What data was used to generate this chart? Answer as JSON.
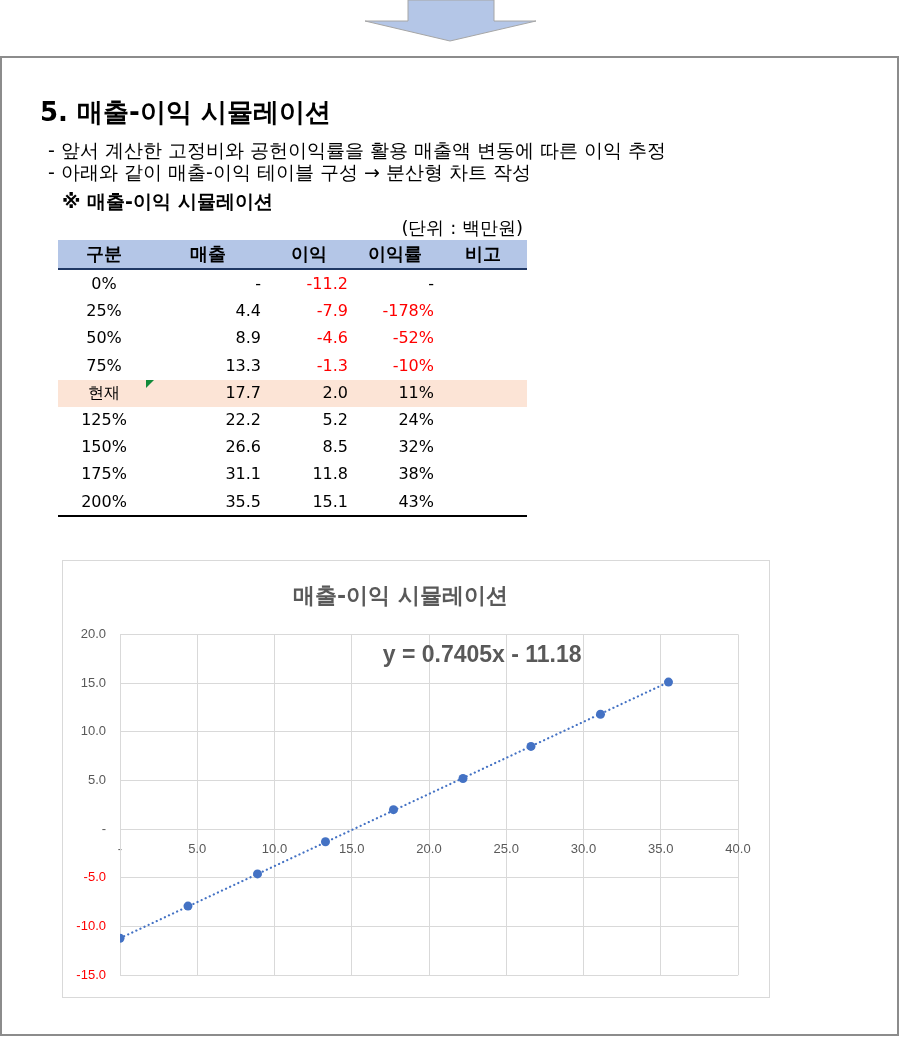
{
  "chart_data": [
    {
      "type": "other",
      "title": "5. 매출-이익 시뮬레이션",
      "subtitle": "※ 매출-이익 시뮬레이션",
      "annotations": [
        "- 앞서 계산한 고정비와 공헌이익률을 활용 매출액 변동에 따른 이익 추정",
        "- 아래와 같이 매출-이익 테이블 구성 → 분산형 차트 작성",
        "(단위 : 백만원)"
      ],
      "ylabel": "구분",
      "categories": [
        "0%",
        "25%",
        "50%",
        "75%",
        "현재",
        "125%",
        "150%",
        "175%",
        "200%"
      ],
      "series": [
        {
          "name": "매출",
          "values": [
            null,
            4.4,
            8.9,
            13.3,
            17.7,
            22.2,
            26.6,
            31.1,
            35.5
          ],
          "value_labels": [
            "-",
            "4.4",
            "8.9",
            "13.3",
            "17.7",
            "22.2",
            "26.6",
            "31.1",
            "35.5"
          ]
        },
        {
          "name": "이익",
          "values": [
            -11.2,
            -7.9,
            -4.6,
            -1.3,
            2.0,
            5.2,
            8.5,
            11.8,
            15.1
          ],
          "value_labels": [
            "-11.2",
            "-7.9",
            "-4.6",
            "-1.3",
            "2.0",
            "5.2",
            "8.5",
            "11.8",
            "15.1"
          ]
        },
        {
          "name": "이익률",
          "values": [
            null,
            -178,
            -52,
            -10,
            11,
            24,
            32,
            38,
            43
          ],
          "value_labels": [
            "-",
            "-178%",
            "-52%",
            "-10%",
            "11%",
            "24%",
            "32%",
            "38%",
            "43%"
          ]
        },
        {
          "name": "비고",
          "values": [
            null,
            null,
            null,
            null,
            null,
            null,
            null,
            null,
            null
          ]
        }
      ]
    },
    {
      "type": "scatter",
      "title": "매출-이익 시뮬레이션",
      "x": [
        0,
        4.4,
        8.9,
        13.3,
        17.7,
        22.2,
        26.6,
        31.1,
        35.5
      ],
      "series": [
        {
          "type": "scatter",
          "color": "#4472c4",
          "values": [
            -11.2,
            -7.9,
            -4.6,
            -1.3,
            2.0,
            5.2,
            8.5,
            11.8,
            15.1
          ]
        },
        {
          "type": "line",
          "x": [
            0,
            35.5
          ],
          "values": [
            -11.2,
            15.1
          ],
          "color": "#4472c4",
          "line_style": "dotted",
          "marker": "none"
        }
      ],
      "marker": "circle",
      "xlim": [
        0,
        40
      ],
      "xticks": [
        {
          "value": 0,
          "label": "-"
        },
        {
          "value": 5,
          "label": "5.0"
        },
        {
          "value": 10,
          "label": "10.0"
        },
        {
          "value": 15,
          "label": "15.0"
        },
        {
          "value": 20,
          "label": "20.0"
        },
        {
          "value": 25,
          "label": "25.0"
        },
        {
          "value": 30,
          "label": "30.0"
        },
        {
          "value": 35,
          "label": "35.0"
        },
        {
          "value": 40,
          "label": "40.0"
        }
      ],
      "ylim": [
        -15,
        20
      ],
      "yticks": [
        {
          "value": -15,
          "label": "-15.0"
        },
        {
          "value": -10,
          "label": "-10.0"
        },
        {
          "value": -5,
          "label": "-5.0"
        },
        {
          "value": 0,
          "label": "-"
        },
        {
          "value": 5,
          "label": "5.0"
        },
        {
          "value": 10,
          "label": "10.0"
        },
        {
          "value": 15,
          "label": "15.0"
        },
        {
          "value": 20,
          "label": "20.0"
        }
      ],
      "grid": true,
      "annotations": [
        "y = 0.7405x - 11.18"
      ]
    }
  ]
}
